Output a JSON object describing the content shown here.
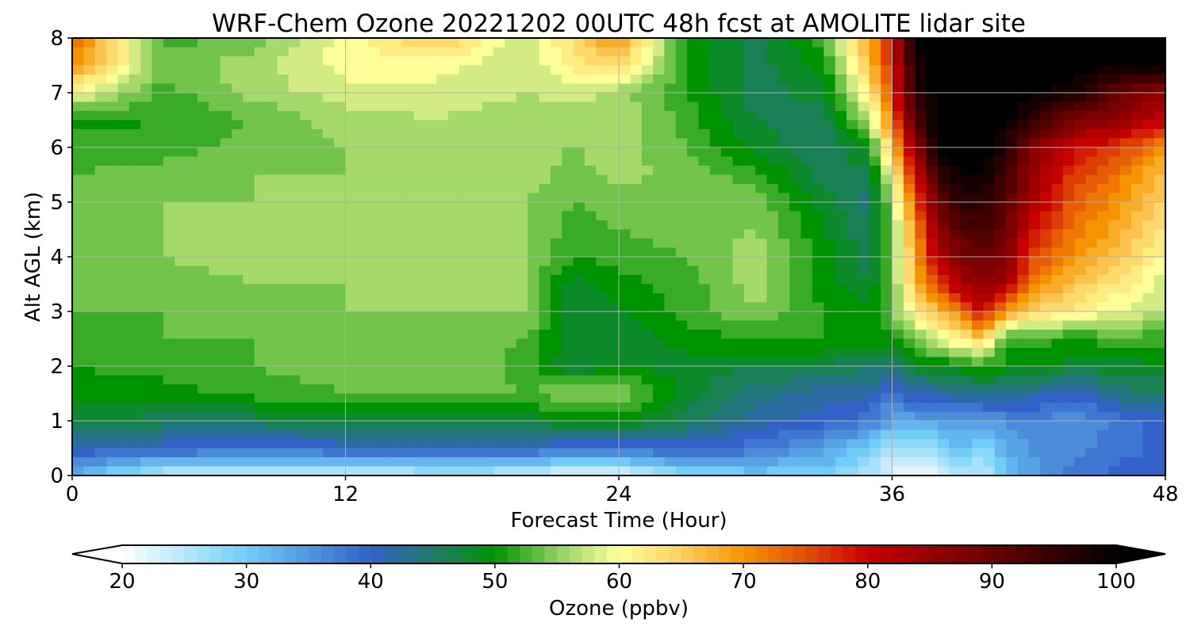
{
  "chart_data": {
    "type": "heatmap",
    "title": "WRF-Chem Ozone  20221202 00UTC 48h fcst at AMOLITE lidar site",
    "xlabel": "Forecast Time (Hour)",
    "ylabel": "Alt AGL (km)",
    "xlim": [
      0,
      48
    ],
    "ylim": [
      0,
      8
    ],
    "x_ticks": [
      "0",
      "12",
      "24",
      "36",
      "48"
    ],
    "y_ticks": [
      "0",
      "1",
      "2",
      "3",
      "4",
      "5",
      "6",
      "7",
      "8"
    ],
    "grid": true,
    "x": [
      0,
      4,
      8,
      12,
      16,
      20,
      22,
      24,
      27,
      30,
      33,
      35,
      36,
      37,
      38,
      39,
      40,
      41,
      42,
      44,
      46,
      48
    ],
    "y": [
      0,
      0.5,
      1,
      1.5,
      2,
      2.5,
      3,
      3.5,
      4,
      4.5,
      5,
      5.5,
      6,
      6.5,
      7,
      7.5,
      8
    ],
    "z": [
      [
        33,
        24,
        24,
        23,
        25,
        24,
        21,
        21,
        28,
        30,
        29,
        25,
        22,
        22,
        21,
        26,
        24,
        30,
        34,
        38,
        40,
        40
      ],
      [
        41,
        40,
        39,
        40,
        40,
        40,
        39,
        39,
        40,
        38,
        34,
        30,
        26,
        27,
        27,
        32,
        28,
        33,
        35,
        36,
        38,
        40
      ],
      [
        48,
        46,
        46,
        47,
        47,
        48,
        49,
        50,
        46,
        42,
        40,
        38,
        33,
        34,
        34,
        34,
        34,
        36,
        37,
        35,
        38,
        40
      ],
      [
        50,
        50,
        52,
        53,
        54,
        53,
        55,
        55,
        48,
        44,
        42,
        42,
        38,
        41,
        42,
        43,
        44,
        43,
        42,
        40,
        44,
        45
      ],
      [
        51,
        52,
        53,
        54,
        55,
        52,
        47,
        49,
        48,
        47,
        47,
        45,
        45,
        48,
        49,
        50,
        51,
        50,
        50,
        48,
        48,
        49
      ],
      [
        52,
        53,
        53,
        53,
        54,
        53,
        47,
        47,
        50,
        51,
        51,
        50,
        50,
        55,
        58,
        62,
        66,
        51,
        52,
        51,
        52,
        52
      ],
      [
        53,
        53,
        54,
        55,
        55,
        55,
        47,
        49,
        52,
        55,
        51,
        50,
        54,
        62,
        66,
        72,
        80,
        70,
        64,
        62,
        59,
        57
      ],
      [
        54,
        54,
        55,
        55,
        55,
        55,
        48,
        50,
        52,
        56,
        50,
        47,
        54,
        66,
        76,
        84,
        86,
        84,
        72,
        66,
        62,
        58
      ],
      [
        54,
        55,
        56,
        56,
        56,
        55,
        51,
        52,
        53,
        56,
        50,
        46,
        54,
        68,
        82,
        88,
        90,
        88,
        76,
        70,
        66,
        60
      ],
      [
        54,
        55,
        56,
        56,
        56,
        55,
        52,
        53,
        54,
        55,
        49,
        45,
        54,
        70,
        86,
        92,
        94,
        90,
        80,
        72,
        68,
        62
      ],
      [
        54,
        55,
        55,
        55,
        56,
        55,
        53,
        54,
        54,
        54,
        48,
        44,
        56,
        74,
        90,
        96,
        96,
        92,
        84,
        74,
        70,
        64
      ],
      [
        53,
        54,
        55,
        55,
        56,
        56,
        54,
        56,
        54,
        52,
        46,
        46,
        60,
        80,
        95,
        99,
        99,
        94,
        86,
        76,
        72,
        66
      ],
      [
        52,
        52,
        54,
        55,
        56,
        56,
        55,
        56,
        53,
        48,
        45,
        50,
        66,
        86,
        100,
        100,
        100,
        97,
        88,
        80,
        76,
        70
      ],
      [
        50,
        51,
        53,
        56,
        57,
        56,
        56,
        57,
        52,
        47,
        46,
        56,
        72,
        92,
        100,
        100,
        100,
        100,
        96,
        88,
        86,
        80
      ],
      [
        60,
        52,
        56,
        58,
        58,
        57,
        58,
        56,
        51,
        46,
        48,
        62,
        76,
        96,
        100,
        100,
        100,
        100,
        100,
        98,
        90,
        86
      ],
      [
        70,
        54,
        56,
        60,
        60,
        57,
        62,
        64,
        51,
        46,
        50,
        66,
        78,
        98,
        100,
        100,
        100,
        100,
        100,
        100,
        100,
        100
      ],
      [
        74,
        52,
        54,
        60,
        66,
        57,
        64,
        70,
        50,
        46,
        52,
        68,
        80,
        100,
        100,
        100,
        100,
        100,
        100,
        100,
        100,
        100
      ]
    ],
    "colorbar": {
      "label": "Ozone  (ppbv)",
      "min": 20,
      "max": 100,
      "ticks": [
        "20",
        "30",
        "40",
        "50",
        "60",
        "70",
        "80",
        "90",
        "100"
      ],
      "extend": "both"
    },
    "colors": {
      "stops": [
        {
          "v": 20,
          "c": "#ffffff"
        },
        {
          "v": 30,
          "c": "#70cdf8"
        },
        {
          "v": 40,
          "c": "#3261c7"
        },
        {
          "v": 45,
          "c": "#1f7a6a"
        },
        {
          "v": 50,
          "c": "#009300"
        },
        {
          "v": 55,
          "c": "#8ed060"
        },
        {
          "v": 60,
          "c": "#ffff9a"
        },
        {
          "v": 65,
          "c": "#ffcf60"
        },
        {
          "v": 70,
          "c": "#f59400"
        },
        {
          "v": 75,
          "c": "#e34e08"
        },
        {
          "v": 80,
          "c": "#c70000"
        },
        {
          "v": 90,
          "c": "#6a0000"
        },
        {
          "v": 100,
          "c": "#000000"
        }
      ]
    }
  }
}
